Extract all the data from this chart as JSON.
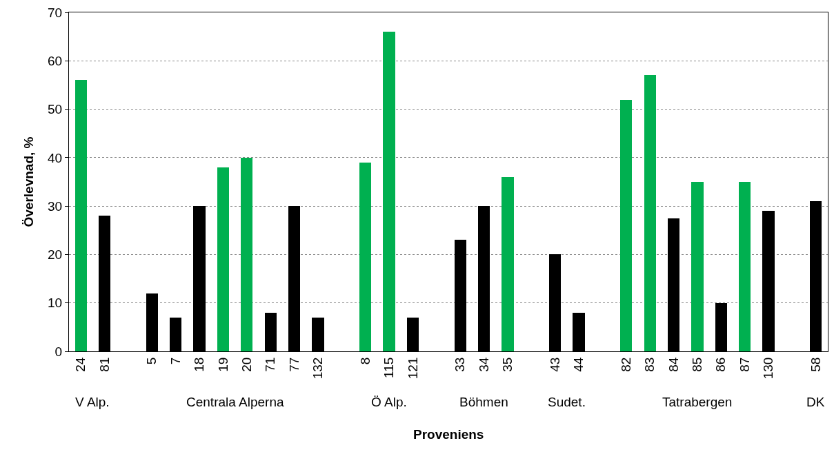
{
  "chart_data": {
    "type": "bar",
    "xlabel": "Proveniens",
    "ylabel": "Överlevnad, %",
    "categories": [
      "24",
      "81",
      null,
      "5",
      "7",
      "18",
      "19",
      "20",
      "71",
      "77",
      "132",
      null,
      "8",
      "115",
      "121",
      null,
      "33",
      "34",
      "35",
      null,
      "43",
      "44",
      null,
      "82",
      "83",
      "84",
      "85",
      "86",
      "87",
      "130",
      null,
      "58"
    ],
    "values": [
      56,
      28,
      null,
      12,
      7,
      30,
      38,
      40,
      8,
      30,
      7,
      null,
      39,
      66,
      7,
      null,
      23,
      30,
      36,
      null,
      20,
      8,
      null,
      52,
      57,
      27.5,
      35,
      10,
      35,
      29,
      null,
      31
    ],
    "colors": [
      "#00b050",
      "#000000",
      null,
      "#000000",
      "#000000",
      "#000000",
      "#00b050",
      "#00b050",
      "#000000",
      "#000000",
      "#000000",
      null,
      "#00b050",
      "#00b050",
      "#000000",
      null,
      "#000000",
      "#000000",
      "#00b050",
      null,
      "#000000",
      "#000000",
      null,
      "#00b050",
      "#00b050",
      "#000000",
      "#00b050",
      "#000000",
      "#00b050",
      "#000000",
      null,
      "#000000"
    ],
    "annotations": [
      "V Alp.",
      "Centrala Alperna",
      "Ö Alp.",
      "Böhmen",
      "Sudet.",
      "Tatrabergen",
      "DK"
    ],
    "ylim": [
      0,
      70
    ],
    "yticks": [
      0,
      10,
      20,
      30,
      40,
      50,
      60,
      70
    ],
    "grid": "y",
    "legend": false
  }
}
